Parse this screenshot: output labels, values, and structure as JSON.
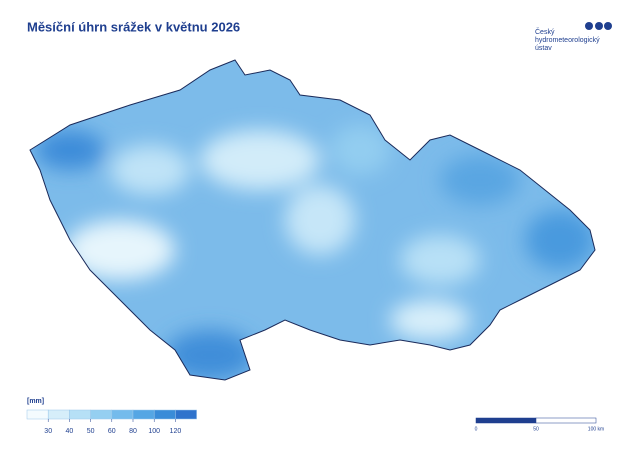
{
  "header": {
    "title": "Měsíční úhrn srážek v květnu 2026"
  },
  "logo": {
    "lines": [
      "Český",
      "hydrometeorologický",
      "ústav"
    ]
  },
  "legend": {
    "unit": "[mm]",
    "breaks": [
      30,
      40,
      50,
      60,
      80,
      100,
      120
    ],
    "colors": [
      "#f4fbfe",
      "#d6eefa",
      "#b6e0f6",
      "#95cff1",
      "#74bbec",
      "#55a6e4",
      "#3a8cd8",
      "#2f73cc"
    ]
  },
  "scale_bar": {
    "labels": [
      "0",
      "50",
      "100 km"
    ]
  }
}
